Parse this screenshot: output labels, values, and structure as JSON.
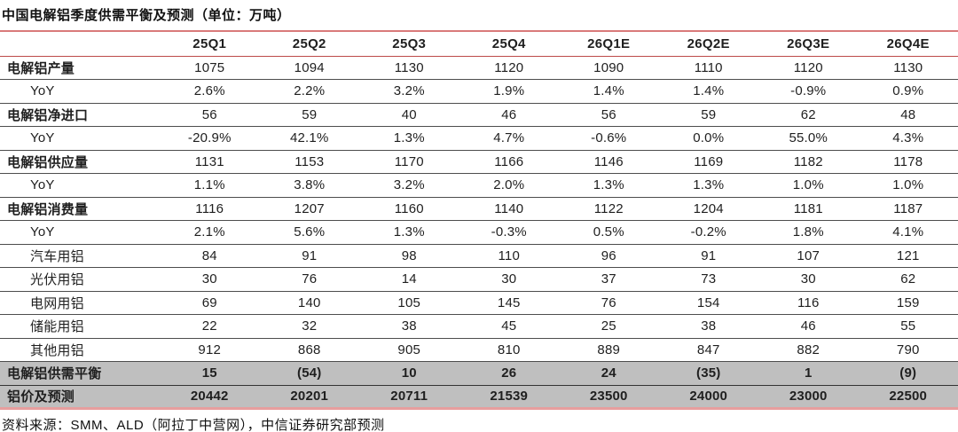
{
  "title": "中国电解铝季度供需平衡及预测（单位：万吨）",
  "footer": {
    "source_text": "资料来源：SMM、ALD（阿拉丁中营网），中信证券研究部预测"
  },
  "colors": {
    "title_rule_red": "#d97a7a",
    "header_rule_red": "#bc4a49",
    "bottom_rule_pink": "#e79e9e",
    "row_line_gray": "#4d4d4d",
    "highlight_row_bg": "#bfbfbf",
    "text": "#1f1f1f"
  },
  "chart_data": {
    "type": "table",
    "title": "中国电解铝季度供需平衡及预测（单位：万吨）",
    "columns": [
      "25Q1",
      "25Q2",
      "25Q3",
      "25Q4",
      "26Q1E",
      "26Q2E",
      "26Q3E",
      "26Q4E"
    ],
    "rows": [
      {
        "label": "电解铝产量",
        "style": "main",
        "values": [
          "1075",
          "1094",
          "1130",
          "1120",
          "1090",
          "1110",
          "1120",
          "1130"
        ]
      },
      {
        "label": "YoY",
        "style": "sub",
        "values": [
          "2.6%",
          "2.2%",
          "3.2%",
          "1.9%",
          "1.4%",
          "1.4%",
          "-0.9%",
          "0.9%"
        ]
      },
      {
        "label": "电解铝净进口",
        "style": "main",
        "values": [
          "56",
          "59",
          "40",
          "46",
          "56",
          "59",
          "62",
          "48"
        ]
      },
      {
        "label": "YoY",
        "style": "sub",
        "values": [
          "-20.9%",
          "42.1%",
          "1.3%",
          "4.7%",
          "-0.6%",
          "0.0%",
          "55.0%",
          "4.3%"
        ]
      },
      {
        "label": "电解铝供应量",
        "style": "main",
        "values": [
          "1131",
          "1153",
          "1170",
          "1166",
          "1146",
          "1169",
          "1182",
          "1178"
        ]
      },
      {
        "label": "YoY",
        "style": "sub",
        "values": [
          "1.1%",
          "3.8%",
          "3.2%",
          "2.0%",
          "1.3%",
          "1.3%",
          "1.0%",
          "1.0%"
        ]
      },
      {
        "label": "电解铝消费量",
        "style": "main",
        "values": [
          "1116",
          "1207",
          "1160",
          "1140",
          "1122",
          "1204",
          "1181",
          "1187"
        ]
      },
      {
        "label": "YoY",
        "style": "sub",
        "values": [
          "2.1%",
          "5.6%",
          "1.3%",
          "-0.3%",
          "0.5%",
          "-0.2%",
          "1.8%",
          "4.1%"
        ]
      },
      {
        "label": "汽车用铝",
        "style": "sub",
        "values": [
          "84",
          "91",
          "98",
          "110",
          "96",
          "91",
          "107",
          "121"
        ]
      },
      {
        "label": "光伏用铝",
        "style": "sub",
        "values": [
          "30",
          "76",
          "14",
          "30",
          "37",
          "73",
          "30",
          "62"
        ]
      },
      {
        "label": "电网用铝",
        "style": "sub",
        "values": [
          "69",
          "140",
          "105",
          "145",
          "76",
          "154",
          "116",
          "159"
        ]
      },
      {
        "label": "储能用铝",
        "style": "sub",
        "values": [
          "22",
          "32",
          "38",
          "45",
          "25",
          "38",
          "46",
          "55"
        ]
      },
      {
        "label": "其他用铝",
        "style": "sub",
        "values": [
          "912",
          "868",
          "905",
          "810",
          "889",
          "847",
          "882",
          "790"
        ]
      },
      {
        "label": "电解铝供需平衡",
        "style": "highlight",
        "values": [
          "15",
          "(54)",
          "10",
          "26",
          "24",
          "(35)",
          "1",
          "(9)"
        ]
      },
      {
        "label": "铝价及预测",
        "style": "highlight last",
        "values": [
          "20442",
          "20201",
          "20711",
          "21539",
          "23500",
          "24000",
          "23000",
          "22500"
        ]
      }
    ]
  }
}
